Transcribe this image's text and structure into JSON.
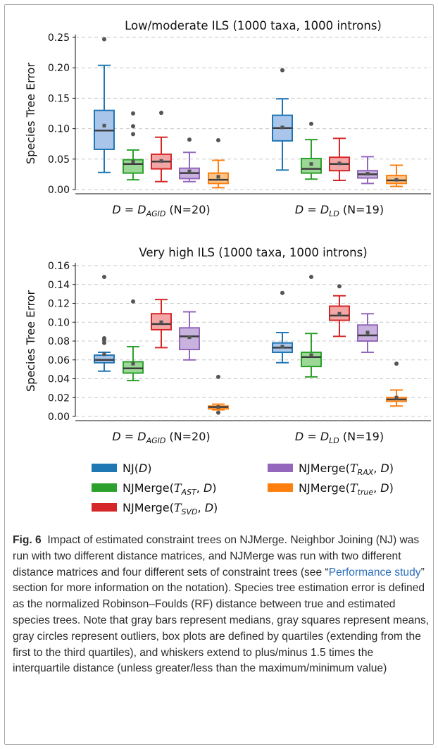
{
  "chart_data": [
    {
      "type": "box",
      "title": "Low/moderate ILS (1000 taxa, 1000 introns)",
      "ylabel": "Species Tree Error",
      "ylim": [
        0,
        0.25
      ],
      "yticks": [
        "0.00",
        "0.05",
        "0.10",
        "0.15",
        "0.20",
        "0.25"
      ],
      "grid": true,
      "groups": [
        {
          "parts": [
            "D = D",
            "AGID",
            " (N=20)"
          ]
        },
        {
          "parts": [
            "D = D",
            "LD",
            " (N=19)"
          ]
        }
      ],
      "boxes": [
        [
          {
            "series": 0,
            "whislo": 0.028,
            "q1": 0.066,
            "med": 0.097,
            "q3": 0.13,
            "whishi": 0.204,
            "mean": 0.105,
            "fliers": [
              0.247
            ]
          },
          {
            "series": 1,
            "whislo": 0.016,
            "q1": 0.027,
            "med": 0.042,
            "q3": 0.049,
            "whishi": 0.065,
            "mean": 0.046,
            "fliers": [
              0.091,
              0.104,
              0.125
            ]
          },
          {
            "series": 2,
            "whislo": 0.013,
            "q1": 0.034,
            "med": 0.046,
            "q3": 0.058,
            "whishi": 0.086,
            "mean": 0.047,
            "fliers": [
              0.126
            ]
          },
          {
            "series": 3,
            "whislo": 0.013,
            "q1": 0.018,
            "med": 0.027,
            "q3": 0.035,
            "whishi": 0.061,
            "mean": 0.03,
            "fliers": [
              0.082
            ]
          },
          {
            "series": 4,
            "whislo": 0.003,
            "q1": 0.01,
            "med": 0.016,
            "q3": 0.027,
            "whishi": 0.048,
            "mean": 0.021,
            "fliers": [
              0.081
            ]
          }
        ],
        [
          {
            "series": 0,
            "whislo": 0.032,
            "q1": 0.08,
            "med": 0.101,
            "q3": 0.122,
            "whishi": 0.149,
            "mean": 0.102,
            "fliers": [
              0.196
            ]
          },
          {
            "series": 1,
            "whislo": 0.017,
            "q1": 0.027,
            "med": 0.034,
            "q3": 0.051,
            "whishi": 0.082,
            "mean": 0.042,
            "fliers": [
              0.108
            ]
          },
          {
            "series": 2,
            "whislo": 0.015,
            "q1": 0.031,
            "med": 0.042,
            "q3": 0.053,
            "whishi": 0.084,
            "mean": 0.043,
            "fliers": []
          },
          {
            "series": 3,
            "whislo": 0.01,
            "q1": 0.019,
            "med": 0.025,
            "q3": 0.031,
            "whishi": 0.054,
            "mean": 0.026,
            "fliers": []
          },
          {
            "series": 4,
            "whislo": 0.005,
            "q1": 0.01,
            "med": 0.015,
            "q3": 0.023,
            "whishi": 0.04,
            "mean": 0.016,
            "fliers": []
          }
        ]
      ]
    },
    {
      "type": "box",
      "title": "Very high ILS (1000 taxa, 1000 introns)",
      "ylabel": "Species Tree Error",
      "ylim": [
        0,
        0.16
      ],
      "yticks": [
        "0.00",
        "0.02",
        "0.04",
        "0.06",
        "0.08",
        "0.10",
        "0.12",
        "0.14",
        "0.16"
      ],
      "grid": true,
      "groups": [
        {
          "parts": [
            "D = D",
            "AGID",
            " (N=20)"
          ]
        },
        {
          "parts": [
            "D = D",
            "LD",
            " (N=19)"
          ]
        }
      ],
      "boxes": [
        [
          {
            "series": 0,
            "whislo": 0.048,
            "q1": 0.057,
            "med": 0.06,
            "q3": 0.065,
            "whishi": 0.068,
            "mean": 0.066,
            "fliers": [
              0.078,
              0.081,
              0.083,
              0.148
            ]
          },
          {
            "series": 1,
            "whislo": 0.038,
            "q1": 0.046,
            "med": 0.051,
            "q3": 0.058,
            "whishi": 0.074,
            "mean": 0.056,
            "fliers": [
              0.122
            ]
          },
          {
            "series": 2,
            "whislo": 0.073,
            "q1": 0.092,
            "med": 0.098,
            "q3": 0.109,
            "whishi": 0.124,
            "mean": 0.1,
            "fliers": []
          },
          {
            "series": 3,
            "whislo": 0.06,
            "q1": 0.071,
            "med": 0.085,
            "q3": 0.094,
            "whishi": 0.111,
            "mean": 0.084,
            "fliers": []
          },
          {
            "series": 4,
            "whislo": 0.007,
            "q1": 0.008,
            "med": 0.01,
            "q3": 0.011,
            "whishi": 0.013,
            "mean": 0.01,
            "fliers": [
              0.042,
              0.004
            ]
          }
        ],
        [
          {
            "series": 0,
            "whislo": 0.057,
            "q1": 0.068,
            "med": 0.073,
            "q3": 0.078,
            "whishi": 0.089,
            "mean": 0.074,
            "fliers": [
              0.131
            ]
          },
          {
            "series": 1,
            "whislo": 0.042,
            "q1": 0.053,
            "med": 0.063,
            "q3": 0.068,
            "whishi": 0.088,
            "mean": 0.065,
            "fliers": [
              0.148
            ]
          },
          {
            "series": 2,
            "whislo": 0.085,
            "q1": 0.102,
            "med": 0.107,
            "q3": 0.117,
            "whishi": 0.128,
            "mean": 0.109,
            "fliers": [
              0.138
            ]
          },
          {
            "series": 3,
            "whislo": 0.068,
            "q1": 0.08,
            "med": 0.086,
            "q3": 0.097,
            "whishi": 0.109,
            "mean": 0.089,
            "fliers": []
          },
          {
            "series": 4,
            "whislo": 0.011,
            "q1": 0.016,
            "med": 0.018,
            "q3": 0.02,
            "whishi": 0.028,
            "mean": 0.02,
            "fliers": [
              0.056
            ]
          }
        ]
      ]
    }
  ],
  "series": [
    {
      "fill": "#a9c5ea",
      "stroke": "#1f77b4",
      "swatch": "#1f77b4",
      "label_parts": [
        "NJ(",
        "D",
        ")"
      ]
    },
    {
      "fill": "#9bd895",
      "stroke": "#2ca02c",
      "swatch": "#2ca02c",
      "label_parts": [
        "NJMerge(",
        "T",
        "AST",
        ", ",
        "D",
        ")"
      ]
    },
    {
      "fill": "#f3a6a6",
      "stroke": "#d62728",
      "swatch": "#d62728",
      "label_parts": [
        "NJMerge(",
        "T",
        "SVD",
        ", ",
        "D",
        ")"
      ]
    },
    {
      "fill": "#c8b3de",
      "stroke": "#9467bd",
      "swatch": "#9467bd",
      "label_parts": [
        "NJMerge(",
        "T",
        "RAX",
        ", ",
        "D",
        ")"
      ]
    },
    {
      "fill": "#fcc489",
      "stroke": "#ff7f0e",
      "swatch": "#ff7f0e",
      "label_parts": [
        "NJMerge(",
        "T",
        "true",
        ", ",
        "D",
        ")"
      ]
    }
  ],
  "caption": {
    "label": "Fig. 6",
    "text_before_link": "Impact of estimated constraint trees on NJMerge. Neighbor Joining (NJ) was run with two different distance matrices, and NJMerge was run with two different distance matrices and four different sets of constraint trees (see “",
    "link": "Performance study",
    "text_after_link": "” section for more information on the notation). Species tree estimation error is defined as the normalized Robinson–Foulds (RF) distance between true and estimated species trees. Note that gray bars represent medians, gray squares represent means, gray circles represent outliers, box plots are defined by quartiles (extending from the first to the third quartiles), and whiskers extend to plus/minus 1.5 times the interquartile distance (unless greater/less than the maximum/minimum value)"
  }
}
